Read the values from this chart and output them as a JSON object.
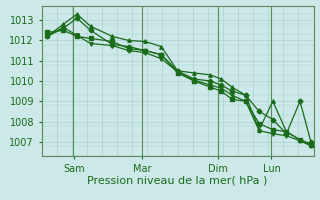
{
  "bg_color": "#cce8e8",
  "grid_color": "#aad0d0",
  "line_color": "#1a6b1a",
  "xlabel": "Pression niveau de la mer( hPa )",
  "xlabel_fontsize": 8,
  "ylim": [
    1006.3,
    1013.7
  ],
  "yticks": [
    1007,
    1008,
    1009,
    1010,
    1011,
    1012,
    1013
  ],
  "xtick_labels": [
    "Sam",
    "Mar",
    "Dim",
    "Lun"
  ],
  "xtick_positions": [
    0.12,
    0.37,
    0.65,
    0.845
  ],
  "xlim": [
    0.0,
    1.0
  ],
  "series1_x": [
    0.02,
    0.08,
    0.13,
    0.18,
    0.26,
    0.32,
    0.38,
    0.44,
    0.5,
    0.56,
    0.62,
    0.66,
    0.7,
    0.75,
    0.8,
    0.85,
    0.9,
    0.95,
    0.99
  ],
  "series1_y": [
    1012.2,
    1012.8,
    1013.3,
    1012.7,
    1012.2,
    1012.0,
    1011.95,
    1011.7,
    1010.5,
    1010.4,
    1010.3,
    1010.1,
    1009.7,
    1009.3,
    1007.6,
    1009.0,
    1007.5,
    1007.1,
    1006.9
  ],
  "series2_x": [
    0.02,
    0.08,
    0.13,
    0.18,
    0.26,
    0.32,
    0.38,
    0.44,
    0.5,
    0.56,
    0.62,
    0.66,
    0.7,
    0.75,
    0.8,
    0.85,
    0.9,
    0.95,
    0.99
  ],
  "series2_y": [
    1012.2,
    1012.6,
    1013.1,
    1012.5,
    1011.8,
    1011.7,
    1011.5,
    1011.3,
    1010.5,
    1010.1,
    1010.0,
    1009.8,
    1009.5,
    1009.3,
    1008.5,
    1008.1,
    1007.4,
    1009.0,
    1007.0
  ],
  "series3_x": [
    0.02,
    0.08,
    0.13,
    0.18,
    0.26,
    0.32,
    0.38,
    0.44,
    0.5,
    0.56,
    0.62,
    0.66,
    0.7,
    0.75,
    0.8,
    0.85,
    0.9,
    0.95,
    0.99
  ],
  "series3_y": [
    1012.4,
    1012.5,
    1012.2,
    1012.1,
    1011.95,
    1011.6,
    1011.5,
    1011.3,
    1010.4,
    1010.0,
    1009.7,
    1009.5,
    1009.1,
    1009.0,
    1007.9,
    1007.6,
    1007.5,
    1007.1,
    1006.85
  ],
  "series4_x": [
    0.02,
    0.08,
    0.13,
    0.18,
    0.26,
    0.32,
    0.38,
    0.44,
    0.5,
    0.56,
    0.62,
    0.66,
    0.7,
    0.75,
    0.8,
    0.85,
    0.9,
    0.95,
    0.99
  ],
  "series4_y": [
    1012.2,
    1012.65,
    1012.25,
    1011.85,
    1011.75,
    1011.5,
    1011.4,
    1011.1,
    1010.45,
    1010.05,
    1009.8,
    1009.65,
    1009.3,
    1009.0,
    1007.55,
    1007.4,
    1007.3,
    1007.05,
    1006.8
  ],
  "vline_positions": [
    0.115,
    0.37,
    0.65,
    0.845
  ],
  "vline_color": "#5a8a5a",
  "tick_label_fontsize": 7,
  "fig_width": 3.2,
  "fig_height": 2.0,
  "dpi": 100,
  "lw": 0.9,
  "ms": 2.5
}
